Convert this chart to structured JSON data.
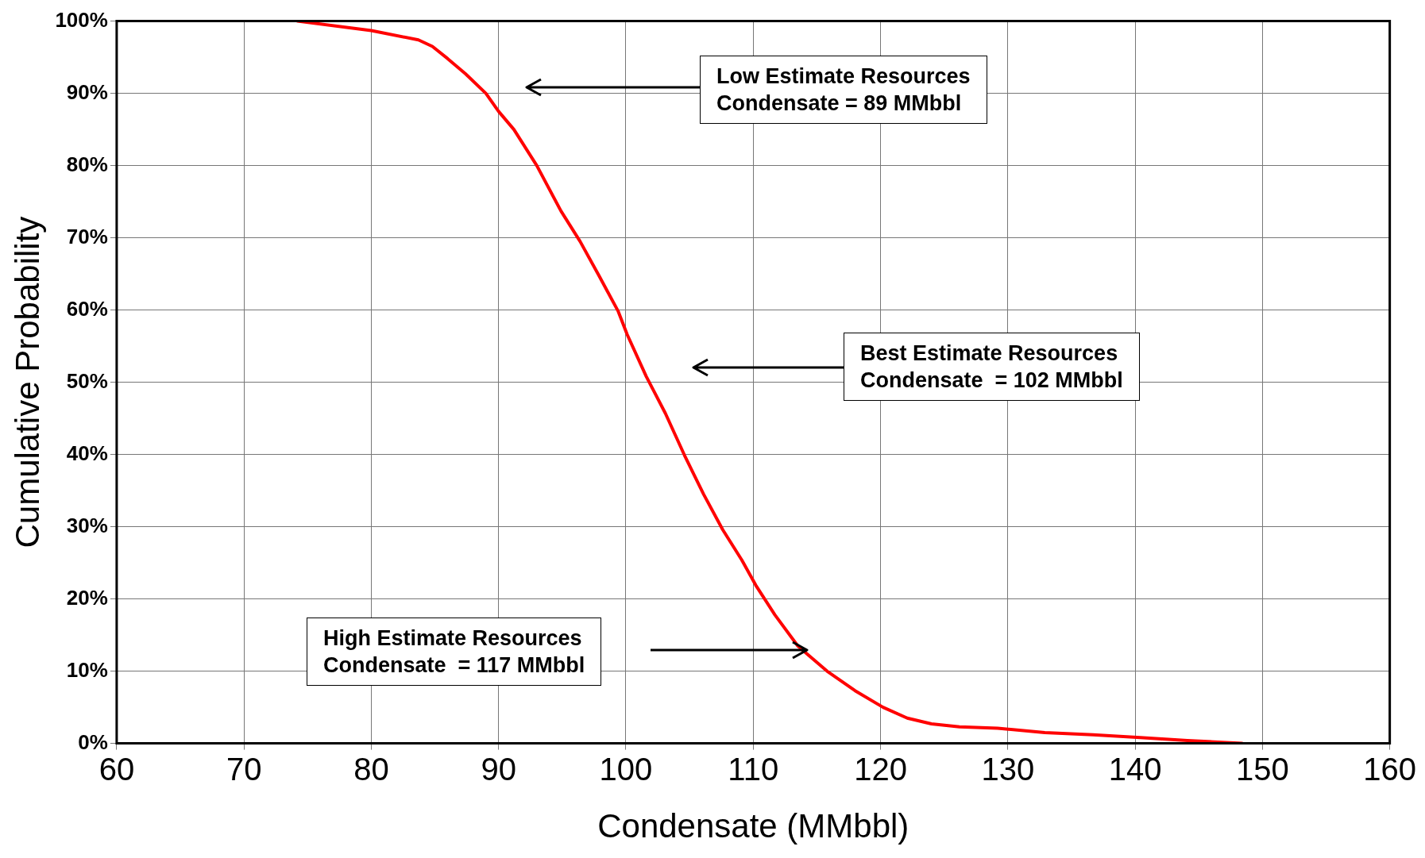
{
  "chart_data": {
    "type": "line",
    "xlabel": "Condensate (MMbbl)",
    "ylabel": "Cumulative Probability",
    "xlim": [
      60,
      160
    ],
    "xticks": [
      60,
      70,
      80,
      90,
      100,
      110,
      120,
      130,
      140,
      150,
      160
    ],
    "ylim": [
      0,
      100
    ],
    "yticks": [
      {
        "value": 0,
        "label": "0%"
      },
      {
        "value": 10,
        "label": "10%"
      },
      {
        "value": 20,
        "label": "20%"
      },
      {
        "value": 30,
        "label": "30%"
      },
      {
        "value": 40,
        "label": "40%"
      },
      {
        "value": 50,
        "label": "50%"
      },
      {
        "value": 60,
        "label": "60%"
      },
      {
        "value": 70,
        "label": "70%"
      },
      {
        "value": 80,
        "label": "80%"
      },
      {
        "value": 90,
        "label": "90%"
      },
      {
        "value": 100,
        "label": "100%"
      }
    ],
    "grid": true,
    "marker": "none",
    "line_style": "solid",
    "series": [
      {
        "color": "#ff0000",
        "x": [
          74.2,
          80,
          83.7,
          84.8,
          86,
          87.4,
          89,
          90,
          91.2,
          93,
          94.9,
          96.4,
          97.9,
          99.4,
          100.1,
          101.6,
          103.1,
          104.6,
          106.1,
          107.6,
          109.1,
          110.2,
          111.7,
          113.5,
          115.8,
          118,
          120.2,
          122.1,
          124,
          126.2,
          129.2,
          132.9,
          136.7,
          140.4,
          144.1,
          148.4
        ],
        "values": [
          100,
          98.7,
          97.4,
          96.5,
          94.8,
          92.7,
          90,
          87.5,
          85,
          80,
          73.7,
          69.5,
          64.7,
          59.8,
          56.6,
          50.8,
          45.7,
          39.9,
          34.5,
          29.6,
          25.4,
          21.9,
          17.8,
          13.5,
          10,
          7.3,
          5,
          3.5,
          2.7,
          2.3,
          2.1,
          1.5,
          1.2,
          0.8,
          0.4,
          0
        ]
      }
    ],
    "annotations": [
      "Low Estimate Resources\nCondensate = 89 MMbbl",
      "Best Estimate Resources\nCondensate  = 102 MMbbl",
      "High Estimate Resources\nCondensate  = 117 MMbbl"
    ]
  }
}
